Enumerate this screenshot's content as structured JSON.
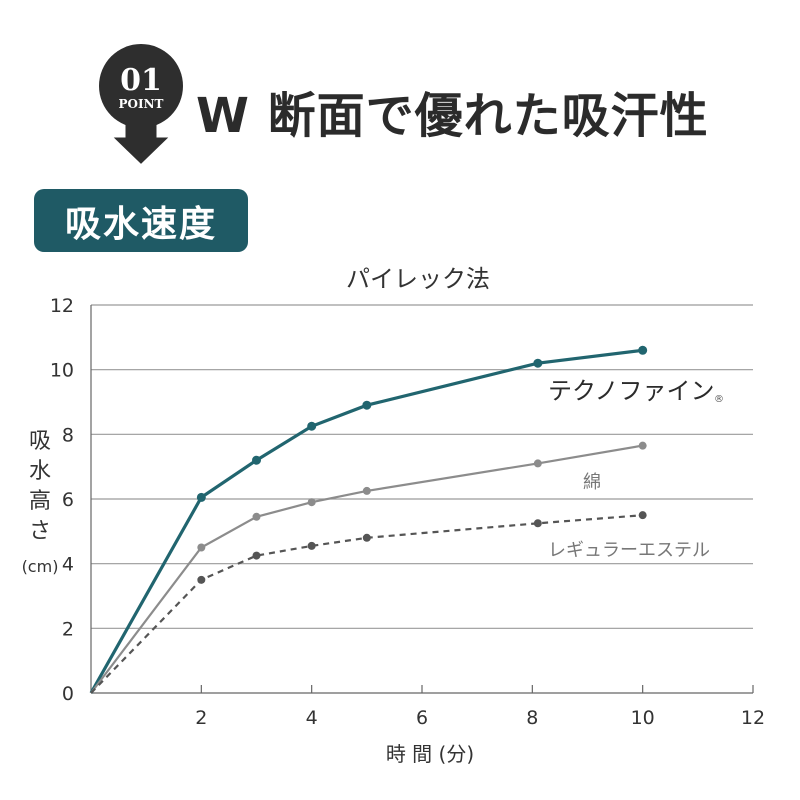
{
  "header": {
    "badge_number": "01",
    "badge_text": "POINT",
    "title": "W 断面で優れた吸汗性"
  },
  "section": {
    "label": "吸水速度"
  },
  "colors": {
    "teal": "#1f5a65",
    "badge": "#2e2e2e",
    "series_main": "#21656f",
    "series_gray": "#8c8c8c",
    "series_dashed": "#555555",
    "grid": "#9a9a9a",
    "text": "#333333"
  },
  "chart_data": {
    "type": "line",
    "title": "パイレック法",
    "xlabel": "時 間 (分)",
    "ylabel": "吸水高さ",
    "ylabel_unit": "(cm)",
    "xlim": [
      0,
      12
    ],
    "ylim": [
      0,
      12
    ],
    "xticks": [
      2,
      4,
      6,
      8,
      10,
      12
    ],
    "yticks": [
      0,
      2,
      4,
      6,
      8,
      10,
      12
    ],
    "grid": "horizontal",
    "series": [
      {
        "name": "テクノファイン",
        "registered_mark": "®",
        "style": "solid",
        "color": "#21656f",
        "points": [
          [
            0,
            0
          ],
          [
            2,
            6.05
          ],
          [
            3,
            7.2
          ],
          [
            4,
            8.25
          ],
          [
            5,
            8.9
          ],
          [
            8.1,
            10.2
          ],
          [
            10,
            10.6
          ]
        ]
      },
      {
        "name": "綿",
        "style": "solid",
        "color": "#8c8c8c",
        "points": [
          [
            0,
            0
          ],
          [
            2,
            4.5
          ],
          [
            3,
            5.45
          ],
          [
            4,
            5.9
          ],
          [
            5,
            6.25
          ],
          [
            8.1,
            7.1
          ],
          [
            10,
            7.65
          ]
        ]
      },
      {
        "name": "レギュラーエステル",
        "style": "dashed",
        "color": "#555555",
        "points": [
          [
            0,
            0
          ],
          [
            2,
            3.5
          ],
          [
            3,
            4.25
          ],
          [
            4,
            4.55
          ],
          [
            5,
            4.8
          ],
          [
            8.1,
            5.25
          ],
          [
            10,
            5.5
          ]
        ]
      }
    ]
  }
}
